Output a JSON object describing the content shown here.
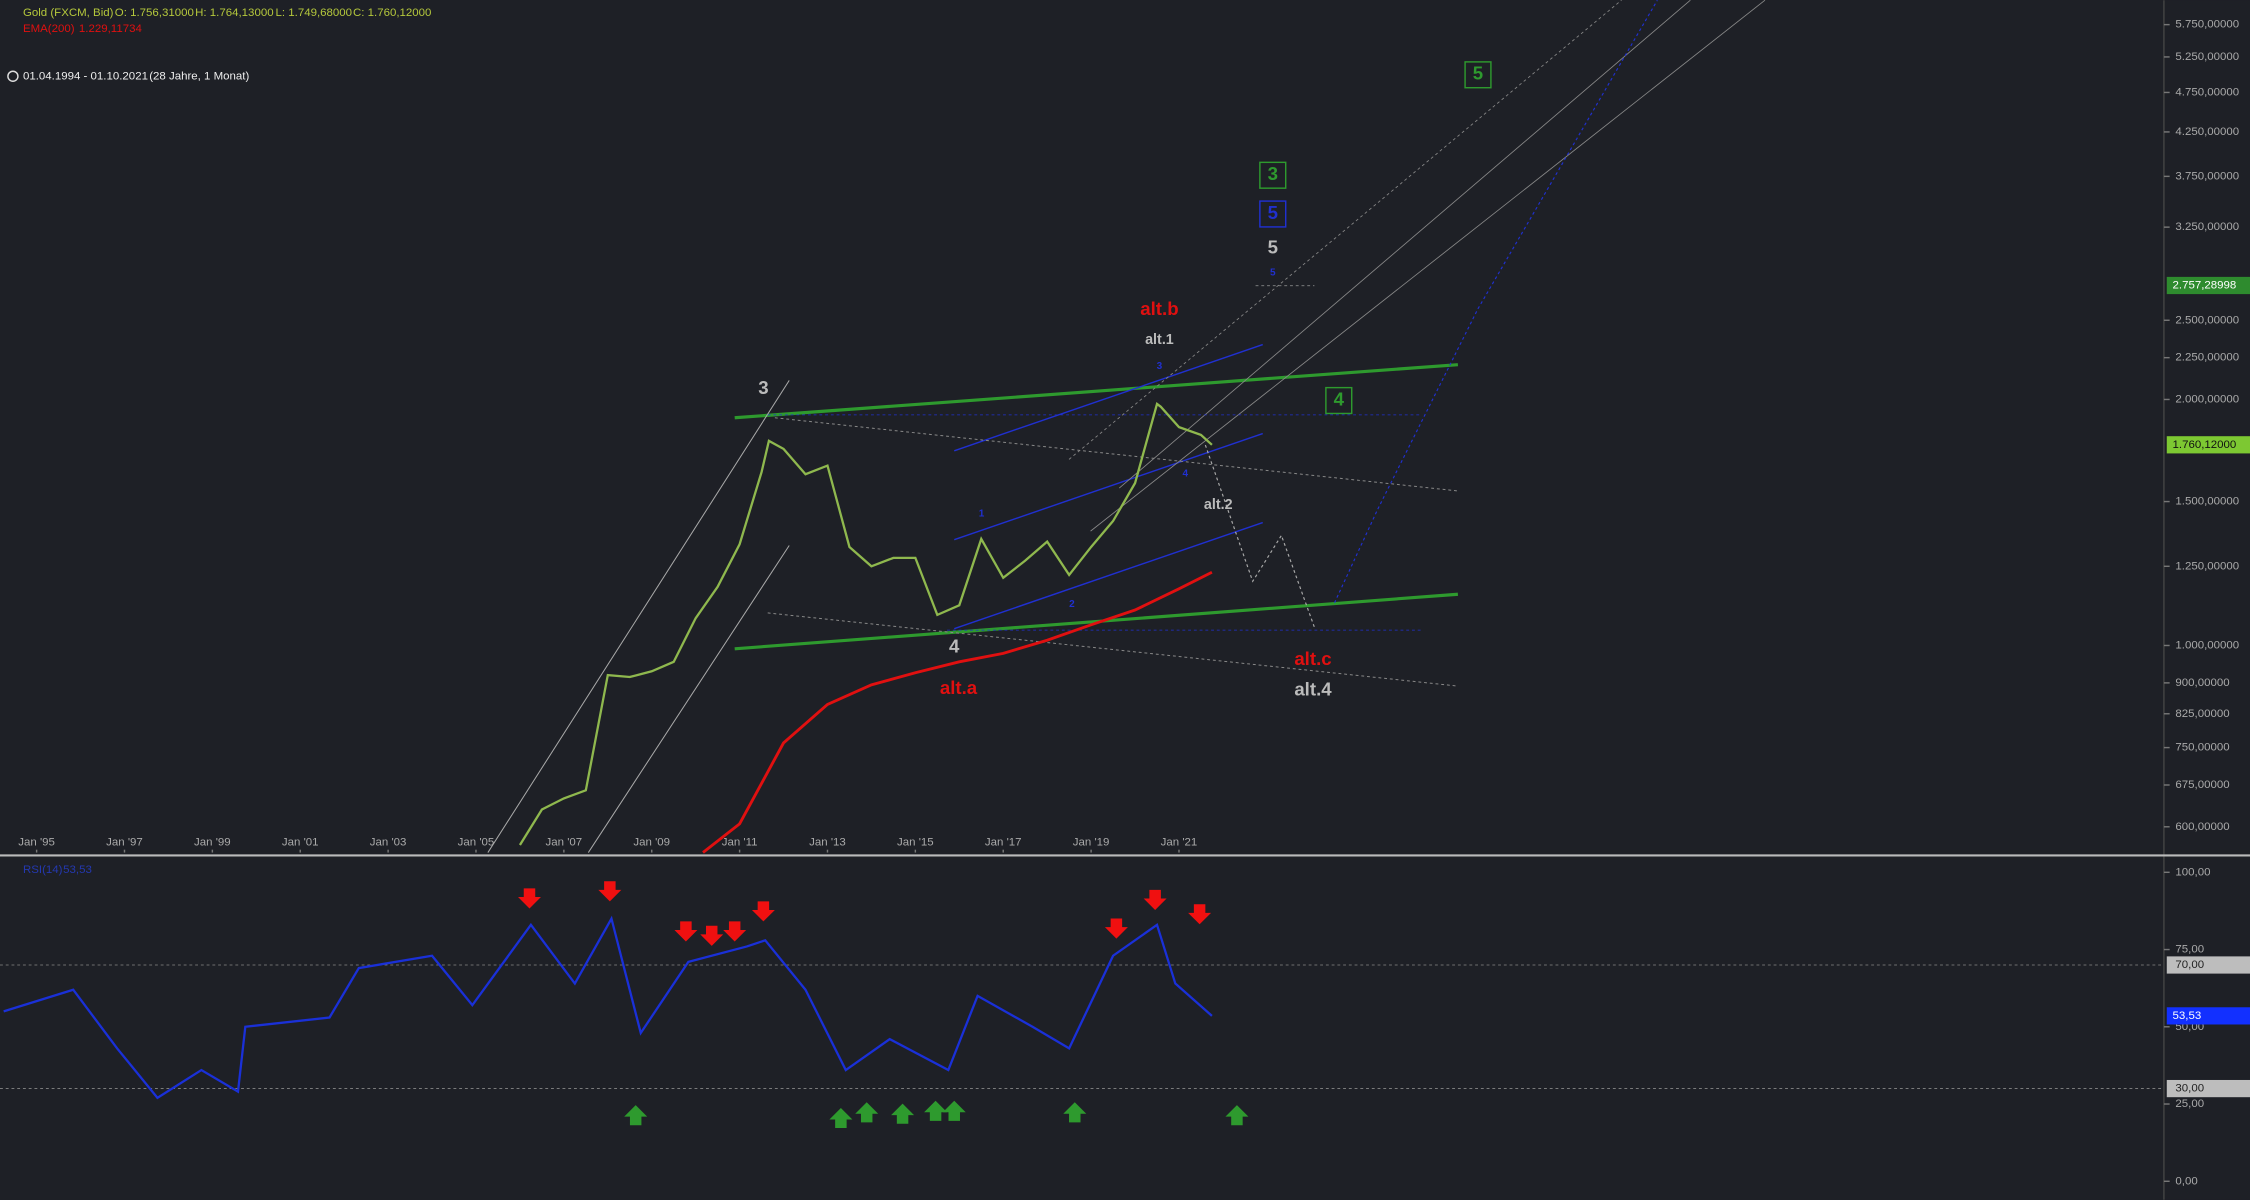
{
  "chart_data": [
    {
      "type": "line",
      "log_scale": true,
      "ohlc_labels": [
        "O: 1.756,31000",
        "H: 1.764,13000",
        "L: 1.749,68000",
        "C: 1.760,12000"
      ],
      "date_range": "01.04.1994 - 01.10.2021",
      "duration": "(28 Jahre, 1 Monat)",
      "xlim": [
        "1994-03",
        "2043-06"
      ],
      "xticks": [
        {
          "value": "1995-01",
          "label": "Jan '95"
        },
        {
          "value": "1997-01",
          "label": "Jan '97"
        },
        {
          "value": "1999-01",
          "label": "Jan '99"
        },
        {
          "value": "2001-01",
          "label": "Jan '01"
        },
        {
          "value": "2003-01",
          "label": "Jan '03"
        },
        {
          "value": "2005-01",
          "label": "Jan '05"
        },
        {
          "value": "2007-01",
          "label": "Jan '07"
        },
        {
          "value": "2009-01",
          "label": "Jan '09"
        },
        {
          "value": "2011-01",
          "label": "Jan '11"
        },
        {
          "value": "2013-01",
          "label": "Jan '13"
        },
        {
          "value": "2015-01",
          "label": "Jan '15"
        },
        {
          "value": "2017-01",
          "label": "Jan '17"
        },
        {
          "value": "2019-01",
          "label": "Jan '19"
        },
        {
          "value": "2021-01",
          "label": "Jan '21"
        }
      ],
      "ylim": [
        558,
        6160
      ],
      "yticks": [
        {
          "value": 5750,
          "label": "5.750,00000"
        },
        {
          "value": 5250,
          "label": "5.250,00000"
        },
        {
          "value": 4750,
          "label": "4.750,00000"
        },
        {
          "value": 4250,
          "label": "4.250,00000"
        },
        {
          "value": 3750,
          "label": "3.750,00000"
        },
        {
          "value": 3250,
          "label": "3.250,00000"
        },
        {
          "value": 2500,
          "label": "2.500,00000"
        },
        {
          "value": 2250,
          "label": "2.250,00000"
        },
        {
          "value": 2000,
          "label": "2.000,00000"
        },
        {
          "value": 1500,
          "label": "1.500,00000"
        },
        {
          "value": 1250,
          "label": "1.250,00000"
        },
        {
          "value": 1000,
          "label": "1.000,00000"
        },
        {
          "value": 900,
          "label": "900,00000"
        },
        {
          "value": 825,
          "label": "825,00000"
        },
        {
          "value": 750,
          "label": "750,00000"
        },
        {
          "value": 675,
          "label": "675,00000"
        },
        {
          "value": 600,
          "label": "600,00000"
        }
      ],
      "markers": [
        {
          "value": 2757.28998,
          "label": "2.757,28998",
          "color": "#2e8b2e"
        }
      ],
      "series": [
        {
          "name": "Gold (FXCM, Bid)",
          "color": "#8fb84e",
          "last_label": "1.760,12000",
          "x": [
            "2006-01",
            "2006-07",
            "2007-01",
            "2007-07",
            "2008-01",
            "2008-07",
            "2009-01",
            "2009-07",
            "2010-01",
            "2010-07",
            "2011-01",
            "2011-07",
            "2011-09",
            "2012-01",
            "2012-07",
            "2013-01",
            "2013-07",
            "2014-01",
            "2014-07",
            "2015-01",
            "2015-07",
            "2016-01",
            "2016-07",
            "2017-01",
            "2017-07",
            "2018-01",
            "2018-07",
            "2019-01",
            "2019-07",
            "2020-01",
            "2020-07",
            "2020-08",
            "2021-01",
            "2021-07",
            "2021-10"
          ],
          "values": [
            570,
            630,
            650,
            665,
            920,
            915,
            930,
            955,
            1080,
            1180,
            1330,
            1630,
            1780,
            1740,
            1620,
            1660,
            1320,
            1250,
            1280,
            1280,
            1090,
            1120,
            1350,
            1210,
            1270,
            1340,
            1220,
            1320,
            1420,
            1580,
            1975,
            1960,
            1850,
            1810,
            1760.12
          ]
        },
        {
          "name": "EMA(200)",
          "color": "#e01010",
          "last_label": "1.229,11734",
          "x": [
            "2010-03",
            "2011-01",
            "2012-01",
            "2013-01",
            "2014-01",
            "2015-01",
            "2016-01",
            "2017-01",
            "2018-01",
            "2019-01",
            "2020-01",
            "2021-01",
            "2021-10"
          ],
          "values": [
            558,
            605,
            760,
            847,
            895,
            926,
            955,
            978,
            1015,
            1060,
            1105,
            1173,
            1229.11734
          ]
        }
      ],
      "annotations": [
        "3",
        "4",
        "5",
        "alt.a",
        "alt.b",
        "alt.c",
        "alt.4",
        "alt.1",
        "alt.2",
        "3",
        "5",
        "4",
        "5",
        "1",
        "2",
        "3",
        "4",
        "5"
      ]
    },
    {
      "type": "line",
      "xlim": [
        "1994-03",
        "2043-06"
      ],
      "ylim": [
        -6,
        105
      ],
      "yticks": [
        {
          "value": 100,
          "label": "100,00"
        },
        {
          "value": 75,
          "label": "75,00"
        },
        {
          "value": 50,
          "label": "50,00"
        },
        {
          "value": 25,
          "label": "25,00"
        },
        {
          "value": 0,
          "label": "0,00"
        }
      ],
      "levels": [
        {
          "value": 70,
          "label": "70,00"
        },
        {
          "value": 30,
          "label": "30,00"
        }
      ],
      "series": [
        {
          "name": "RSI(14)",
          "color": "#1a30d8",
          "last_label": "53,53",
          "x": [
            "1994-04",
            "1995-11",
            "1996-11",
            "1997-10",
            "1998-10",
            "1999-08",
            "1999-10",
            "2001-09",
            "2002-05",
            "2004-01",
            "2004-12",
            "2006-04",
            "2007-04",
            "2008-02",
            "2008-10",
            "2009-11",
            "2011-03",
            "2011-08",
            "2012-07",
            "2013-06",
            "2014-06",
            "2015-10",
            "2016-06",
            "2017-09",
            "2018-07",
            "2019-07",
            "2020-07",
            "2020-12",
            "2021-10"
          ],
          "values": [
            55,
            62,
            43,
            27,
            36,
            29,
            50,
            53,
            69,
            73,
            57,
            83,
            64,
            85,
            48,
            71,
            76,
            78,
            62,
            36,
            46,
            36,
            60,
            50,
            43,
            73,
            83,
            64,
            53.53
          ]
        }
      ]
    }
  ]
}
